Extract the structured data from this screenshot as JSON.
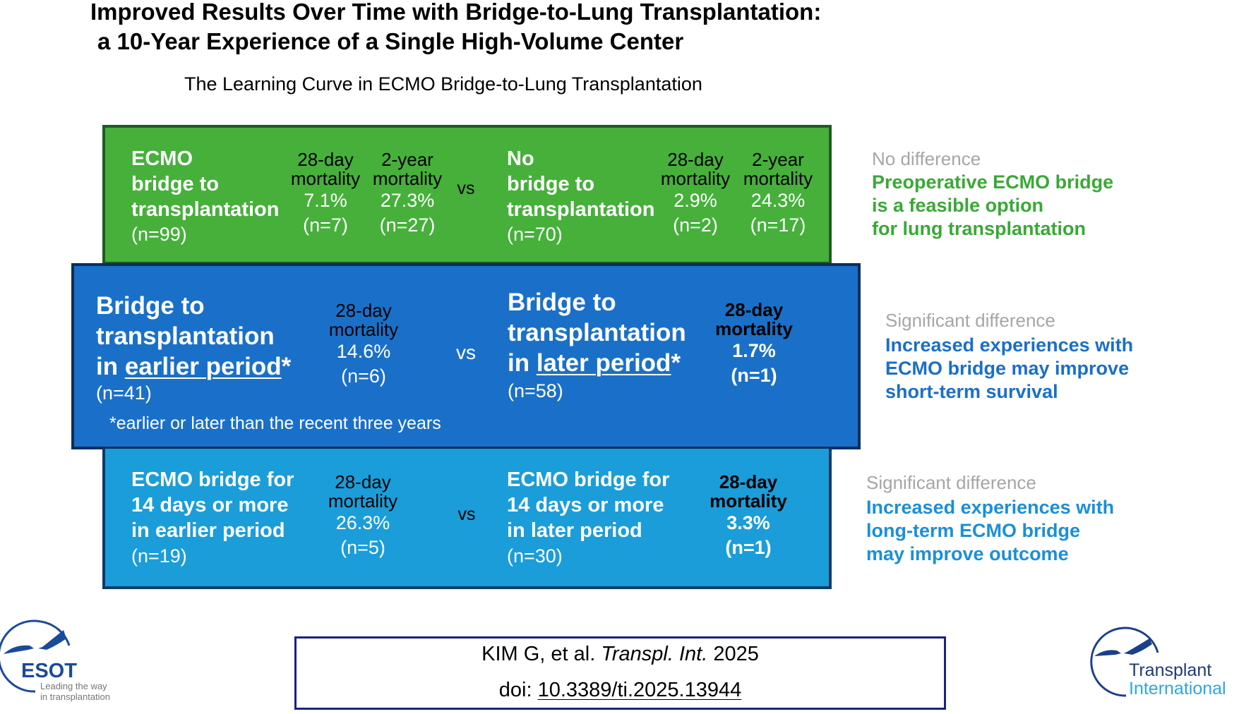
{
  "header": {
    "title_line1": "Improved Results Over Time with Bridge-to-Lung Transplantation:",
    "title_line2": "a 10-Year Experience of a Single High-Volume Center",
    "subtitle": "The Learning Curve in ECMO Bridge-to-Lung Transplantation"
  },
  "colors": {
    "green": "#46b03b",
    "dark_blue": "#1a70c8",
    "light_blue": "#1b9dd9",
    "green_text": "#39a935",
    "blue_text": "#1a6fc9",
    "light_blue_text": "#1b8fd8"
  },
  "row1": {
    "left": {
      "l1": "ECMO",
      "l2": "bridge to",
      "l3": "transplantation",
      "n": "(n=99)"
    },
    "left_cols": [
      {
        "h1": "28-day",
        "h2": "mortality",
        "value": "7.1%",
        "n": "(n=7)"
      },
      {
        "h1": "2-year",
        "h2": "mortality",
        "value": "27.3%",
        "n": "(n=27)"
      }
    ],
    "vs": "vs",
    "right": {
      "l1": "No",
      "l2": "bridge to",
      "l3": "transplantation",
      "n": "(n=70)"
    },
    "right_cols": [
      {
        "h1": "28-day",
        "h2": "mortality",
        "value": "2.9%",
        "n": "(n=2)"
      },
      {
        "h1": "2-year",
        "h2": "mortality",
        "value": "24.3%",
        "n": "(n=17)"
      }
    ],
    "note": {
      "label": "No difference",
      "l1": "Preoperative ECMO bridge",
      "l2": "is a feasible option",
      "l3": "for lung transplantation"
    }
  },
  "row2": {
    "left": {
      "l1": "Bridge to",
      "l2": "transplantation",
      "l3_pre": "in ",
      "l3_u": "earlier period",
      "l3_post": "*",
      "n": "(n=41)"
    },
    "left_col": {
      "h1": "28-day",
      "h2": "mortality",
      "value": "14.6%",
      "n": "(n=6)"
    },
    "vs": "vs",
    "right": {
      "l1": "Bridge to",
      "l2": "transplantation",
      "l3_pre": "in ",
      "l3_u": "later period",
      "l3_post": "*",
      "n": "(n=58)"
    },
    "right_col": {
      "h1": "28-day",
      "h2": "mortality",
      "value": "1.7%",
      "n": "(n=1)"
    },
    "footnote": "*earlier or later than the recent three years",
    "note": {
      "label": "Significant difference",
      "l1": "Increased experiences with",
      "l2": "ECMO bridge may improve",
      "l3": "short-term survival"
    }
  },
  "row3": {
    "left": {
      "l1": "ECMO bridge for",
      "l2": "14 days or more",
      "l3": "in earlier period",
      "n": "(n=19)"
    },
    "left_col": {
      "h1": "28-day",
      "h2": "mortality",
      "value": "26.3%",
      "n": "(n=5)"
    },
    "vs": "vs",
    "right": {
      "l1": "ECMO bridge for",
      "l2": "14 days or more",
      "l3": "in later period",
      "n": "(n=30)"
    },
    "right_col": {
      "h1": "28-day",
      "h2": "mortality",
      "value": "3.3%",
      "n": "(n=1)"
    },
    "note": {
      "label": "Significant difference",
      "l1": "Increased experiences with",
      "l2": "long-term ECMO bridge",
      "l3": "may improve outcome"
    }
  },
  "citation": {
    "authors": "KIM G, et al. ",
    "journal": "Transpl. Int.",
    "year": " 2025",
    "doi_label": "doi: ",
    "doi": "10.3389/ti.2025.13944"
  },
  "logos": {
    "esot": {
      "name": "ESOT",
      "tag1": "Leading the way",
      "tag2": "in transplantation"
    },
    "ti": {
      "l1": "Transplant",
      "l2": "International"
    }
  }
}
